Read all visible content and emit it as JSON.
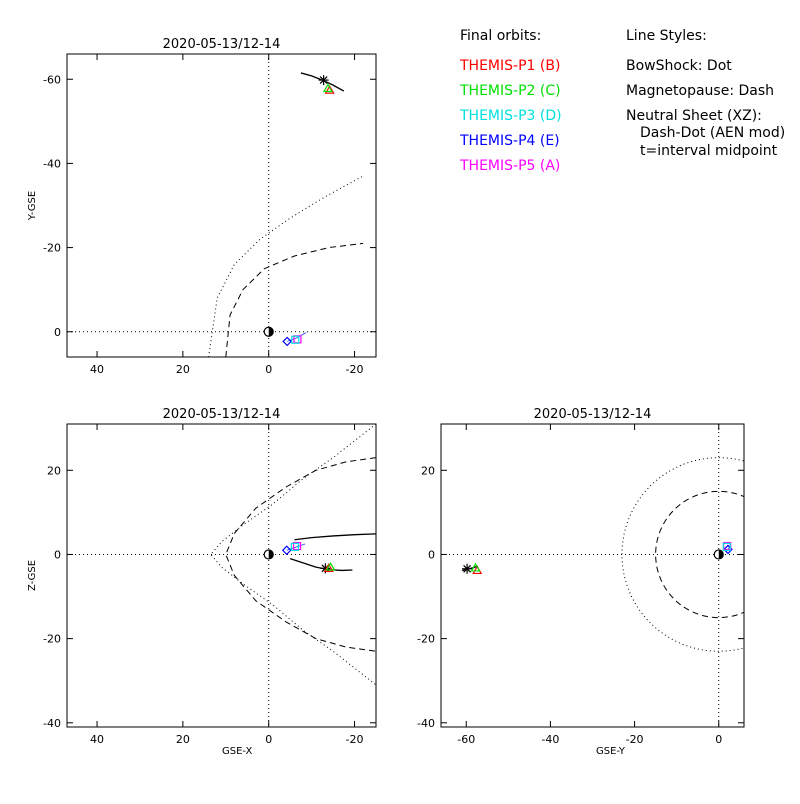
{
  "legend": {
    "orbits_title": "Final orbits:",
    "orbits": [
      {
        "label": "THEMIS-P1 (B)",
        "color": "#ff0000"
      },
      {
        "label": "THEMIS-P2 (C)",
        "color": "#00e000"
      },
      {
        "label": "THEMIS-P3 (D)",
        "color": "#00e0e0"
      },
      {
        "label": "THEMIS-P4 (E)",
        "color": "#0000ff"
      },
      {
        "label": "THEMIS-P5 (A)",
        "color": "#ff00ff"
      }
    ],
    "styles_title": "Line Styles:",
    "styles": [
      "BowShock: Dot",
      "Magnetopause: Dash",
      "Neutral Sheet (XZ):",
      "Dash-Dot (AEN mod)",
      "t=interval midpoint"
    ]
  },
  "chart_data": [
    {
      "id": "xy",
      "type": "line",
      "title": "2020-05-13/12-14",
      "xlabel": "",
      "ylabel": "Y-GSE",
      "xlim": [
        47,
        -25
      ],
      "ylim": [
        6,
        -66
      ],
      "xticks": [
        40,
        20,
        0,
        -20
      ],
      "yticks": [
        -60,
        -40,
        -20,
        0
      ],
      "ticklabels_x": [
        "40",
        "20",
        "0",
        "-20"
      ],
      "ticklabels_y": [
        "-60",
        "-40",
        "-20",
        "0"
      ],
      "series": [
        {
          "style": "dot",
          "x": [
            14,
            12,
            8,
            2,
            -5,
            -13,
            -22
          ],
          "y": [
            6,
            -8,
            -16,
            -22,
            -27,
            -32,
            -37
          ]
        },
        {
          "style": "dash",
          "x": [
            10,
            9,
            6,
            1,
            -6,
            -14,
            -22
          ],
          "y": [
            6,
            -4,
            -10,
            -15,
            -18,
            -20,
            -21
          ]
        },
        {
          "style": "solid",
          "x": [
            -7.5,
            -10,
            -12.5,
            -15,
            -17.5
          ],
          "y": [
            -61.5,
            -60.8,
            -59.8,
            -58.6,
            -57.2
          ]
        }
      ],
      "spacecraft_end": {
        "x": -12.8,
        "y": -59.8
      },
      "spacecraft_markers": [
        {
          "x": -14.2,
          "y": -57.4,
          "color": "#ff0000",
          "shape": "triangle"
        },
        {
          "x": -13.8,
          "y": -57.8,
          "color": "#00e000",
          "shape": "triangle"
        }
      ],
      "inner_points": [
        {
          "x": -4.3,
          "y": 2.3,
          "color": "#0000ff",
          "shape": "diamond"
        },
        {
          "x": -6.7,
          "y": 1.8,
          "color": "#ff00ff",
          "shape": "square"
        },
        {
          "x": -6.2,
          "y": 1.9,
          "color": "#00e0e0",
          "shape": "square"
        }
      ],
      "inner_track": {
        "x": [
          -4.3,
          -6.5,
          -8.7
        ],
        "y": [
          2.3,
          1.5,
          0.2
        ]
      }
    },
    {
      "id": "xz",
      "type": "line",
      "title": "2020-05-13/12-14",
      "xlabel": "GSE-X",
      "ylabel": "Z-GSE",
      "xlim": [
        47,
        -25
      ],
      "ylim": [
        -41,
        31
      ],
      "xticks": [
        40,
        20,
        0,
        -20
      ],
      "yticks": [
        20,
        0,
        -20,
        -40
      ],
      "ticklabels_x": [
        "40",
        "20",
        "0",
        "-20"
      ],
      "ticklabels_y": [
        "20",
        "0",
        "-20",
        "-40"
      ],
      "series": [
        {
          "style": "dot",
          "x": [
            -25,
            -20,
            -15,
            -8,
            -1,
            6,
            11,
            13.5,
            11,
            6,
            -1,
            -8,
            -15,
            -20,
            -25
          ],
          "y": [
            31,
            27,
            23,
            18,
            12,
            7,
            3,
            0,
            -3,
            -7,
            -12,
            -18,
            -23,
            -27,
            -31
          ]
        },
        {
          "style": "dash",
          "x": [
            -25,
            -18,
            -11,
            -4,
            3,
            8,
            10,
            8,
            3,
            -4,
            -11,
            -18,
            -25
          ],
          "y": [
            23,
            22,
            20,
            16,
            11,
            5,
            0,
            -5,
            -11,
            -16,
            -20,
            -22,
            -23
          ]
        },
        {
          "style": "solid",
          "x": [
            -6,
            -10,
            -15,
            -20,
            -25
          ],
          "y": [
            3.5,
            4,
            4.4,
            4.7,
            4.9
          ]
        },
        {
          "style": "solid",
          "x": [
            -5,
            -8,
            -11,
            -14,
            -17,
            -19.5
          ],
          "y": [
            -1,
            -2,
            -3,
            -3.6,
            -3.8,
            -3.7
          ]
        }
      ],
      "spacecraft_end": {
        "x": -13.2,
        "y": -3.3
      },
      "spacecraft_markers": [
        {
          "x": -14.0,
          "y": -3.3,
          "color": "#ff0000",
          "shape": "triangle"
        },
        {
          "x": -14.4,
          "y": -3.0,
          "color": "#00e000",
          "shape": "triangle"
        }
      ],
      "inner_points": [
        {
          "x": -4.2,
          "y": 1.0,
          "color": "#0000ff",
          "shape": "diamond"
        },
        {
          "x": -6.6,
          "y": 2.0,
          "color": "#ff00ff",
          "shape": "square"
        },
        {
          "x": -6.1,
          "y": 1.8,
          "color": "#00e0e0",
          "shape": "square"
        }
      ],
      "inner_track": {
        "x": [
          -4.2,
          -6.5,
          -8.5
        ],
        "y": [
          1.0,
          1.8,
          2.5
        ]
      }
    },
    {
      "id": "yz",
      "type": "line",
      "title": "2020-05-13/12-14",
      "xlabel": "GSE-Y",
      "ylabel": "",
      "xlim": [
        -66,
        6
      ],
      "ylim": [
        -41,
        31
      ],
      "xticks": [
        -60,
        -40,
        -20,
        0
      ],
      "yticks": [
        20,
        0,
        -20,
        -40
      ],
      "ticklabels_x": [
        "-60",
        "-40",
        "-20",
        "0"
      ],
      "ticklabels_y": [
        "20",
        "0",
        "-20",
        "-40"
      ],
      "circles": [
        {
          "style": "dot",
          "cx": 0,
          "cy": 0,
          "r": 23
        },
        {
          "style": "dash",
          "cx": 0,
          "cy": 0,
          "r": 15
        }
      ],
      "series": [
        {
          "style": "solid",
          "x": [
            -61,
            -59.8,
            -58.5,
            -57.2
          ],
          "y": [
            -3.8,
            -3.5,
            -3.2,
            -2.8
          ]
        }
      ],
      "spacecraft_end": {
        "x": -59.8,
        "y": -3.4
      },
      "spacecraft_markers": [
        {
          "x": -57.4,
          "y": -3.8,
          "color": "#ff0000",
          "shape": "triangle"
        },
        {
          "x": -57.8,
          "y": -3.2,
          "color": "#00e000",
          "shape": "triangle"
        }
      ],
      "inner_points": [
        {
          "x": 2.2,
          "y": 1.2,
          "color": "#0000ff",
          "shape": "diamond"
        },
        {
          "x": 2.0,
          "y": 2.0,
          "color": "#ff00ff",
          "shape": "square"
        },
        {
          "x": 1.9,
          "y": 1.8,
          "color": "#00e0e0",
          "shape": "square"
        }
      ],
      "inner_track": {
        "x": [
          1.9,
          2.4,
          2.8
        ],
        "y": [
          0.8,
          1.5,
          2.2
        ]
      }
    }
  ]
}
